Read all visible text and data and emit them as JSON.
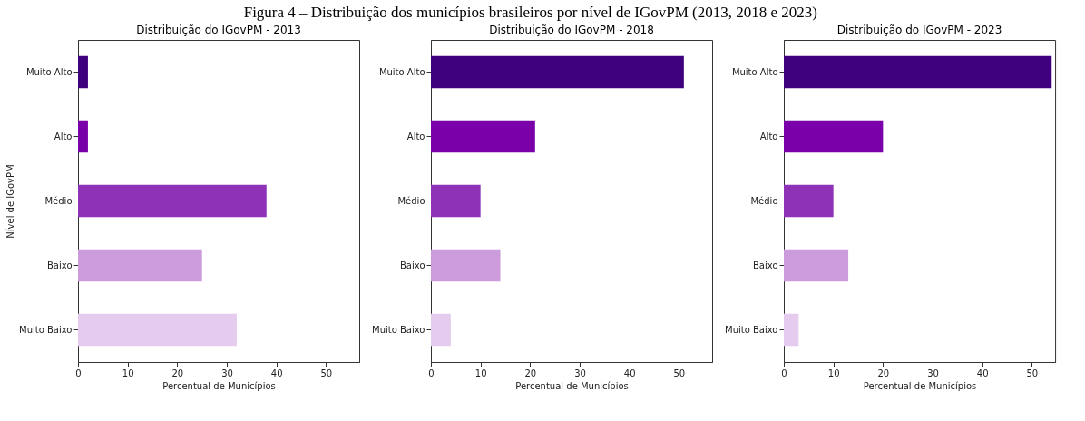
{
  "chart_data": [
    {
      "type": "bar",
      "orientation": "horizontal",
      "title": "Distribuição do IGovPM - 2013",
      "xlabel": "Percentual de Municípios",
      "ylabel": "Nível de IGovPM",
      "annotations": [
        "Figura 4 – Distribuição dos municípios brasileiros por nível de IGovPM (2013, 2018 e 2023)"
      ],
      "categories": [
        "Muito Alto",
        "Alto",
        "Médio",
        "Baixo",
        "Muito Baixo"
      ],
      "values": [
        2,
        2,
        38,
        25,
        32
      ],
      "colors": [
        "#3f007d",
        "#7a00aa",
        "#8e33b8",
        "#cc9bdc",
        "#e5ccef"
      ],
      "xlim": [
        0,
        56.7
      ],
      "xticks": [
        0,
        10,
        20,
        30,
        40,
        50
      ]
    },
    {
      "type": "bar",
      "orientation": "horizontal",
      "title": "Distribuição do IGovPM - 2018",
      "xlabel": "Percentual de Municípios",
      "categories": [
        "Muito Alto",
        "Alto",
        "Médio",
        "Baixo",
        "Muito Baixo"
      ],
      "values": [
        51,
        21,
        10,
        14,
        4
      ],
      "colors": [
        "#3f007d",
        "#7a00aa",
        "#8e33b8",
        "#cc9bdc",
        "#e5ccef"
      ],
      "xlim": [
        0,
        56.7
      ],
      "xticks": [
        0,
        10,
        20,
        30,
        40,
        50
      ]
    },
    {
      "type": "bar",
      "orientation": "horizontal",
      "title": "Distribuição do IGovPM - 2023",
      "xlabel": "Percentual de Municípios",
      "categories": [
        "Muito Alto",
        "Alto",
        "Médio",
        "Baixo",
        "Muito Baixo"
      ],
      "values": [
        54,
        20,
        10,
        13,
        3
      ],
      "colors": [
        "#3f007d",
        "#7a00aa",
        "#8e33b8",
        "#cc9bdc",
        "#e5ccef"
      ],
      "xlim": [
        0,
        54.7
      ],
      "xticks": [
        0,
        10,
        20,
        30,
        40,
        50
      ]
    }
  ]
}
